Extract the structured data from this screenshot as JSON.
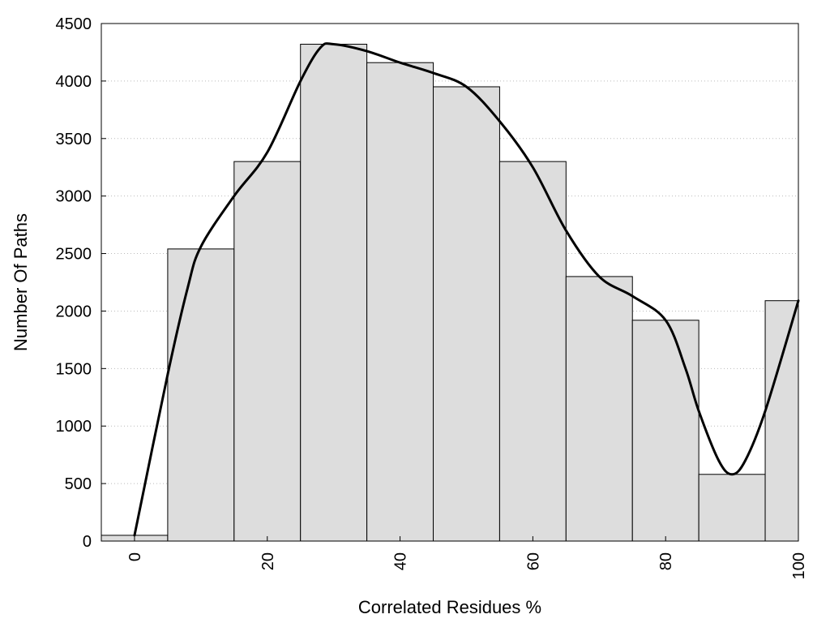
{
  "chart_data": {
    "type": "bar",
    "title": "",
    "xlabel": "Correlated Residues %",
    "ylabel": "Number Of Paths",
    "xlim": [
      -5,
      100
    ],
    "ylim": [
      0,
      4500
    ],
    "grid": true,
    "x": [
      0,
      10,
      20,
      30,
      40,
      50,
      60,
      70,
      80,
      90,
      100
    ],
    "values": [
      50,
      2540,
      3300,
      4320,
      4160,
      3950,
      3300,
      2300,
      1920,
      580,
      2090
    ],
    "xticks": [
      "0",
      "20",
      "40",
      "60",
      "80",
      "100"
    ],
    "yticks": [
      "0",
      "500",
      "1000",
      "1500",
      "2000",
      "2500",
      "3000",
      "3500",
      "4000",
      "4500"
    ],
    "smooth_curve": {
      "x": [
        0,
        5,
        8,
        10,
        15,
        20,
        25,
        28,
        30,
        35,
        40,
        45,
        50,
        55,
        60,
        65,
        70,
        75,
        80,
        83,
        85,
        88,
        90,
        92,
        95,
        100
      ],
      "y": [
        50,
        1450,
        2200,
        2560,
        3000,
        3380,
        4000,
        4290,
        4320,
        4260,
        4160,
        4070,
        3950,
        3650,
        3250,
        2700,
        2300,
        2130,
        1920,
        1500,
        1130,
        700,
        580,
        700,
        1130,
        2090
      ]
    },
    "bar_color": "#dddddd",
    "curve_color": "#000000"
  }
}
